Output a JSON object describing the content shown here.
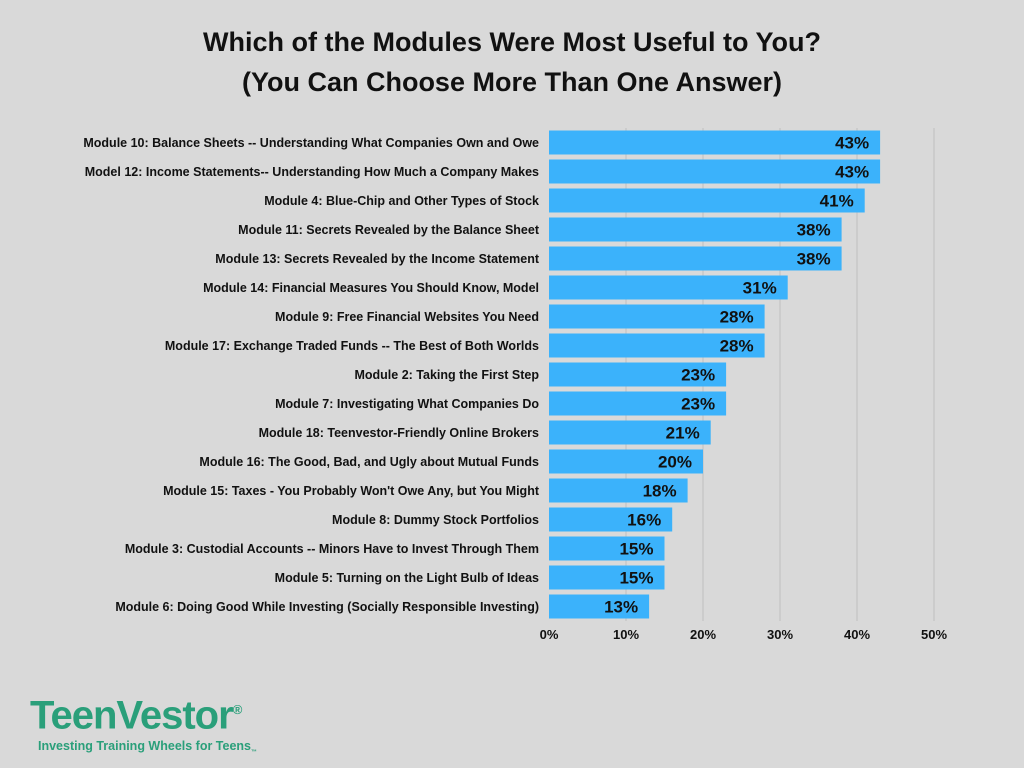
{
  "chart_data": {
    "type": "bar",
    "orientation": "horizontal",
    "title_lines": [
      "Which of the Modules Were Most Useful to You?",
      "(You Can Choose More Than One Answer)"
    ],
    "categories": [
      "Module 10: Balance Sheets -- Understanding What Companies Own and Owe",
      "Model 12: Income Statements-- Understanding How Much a Company Makes",
      "Module 4: Blue-Chip and Other Types of Stock",
      "Module 11: Secrets Revealed by the Balance Sheet",
      "Module 13: Secrets Revealed by the Income Statement",
      "Module 14: Financial Measures You Should Know, Model",
      "Module 9: Free Financial Websites You Need",
      "Module 17: Exchange Traded Funds -- The Best of Both Worlds",
      "Module 2: Taking the First Step",
      "Module 7: Investigating What Companies Do",
      "Module 18: Teenvestor-Friendly Online Brokers",
      "Module 16: The Good, Bad, and Ugly about Mutual Funds",
      "Module 15: Taxes - You Probably Won't Owe Any, but You Might",
      "Module 8: Dummy Stock Portfolios",
      "Module 3: Custodial Accounts -- Minors Have to Invest Through Them",
      "Module 5: Turning on the Light Bulb of Ideas",
      "Module 6: Doing Good While Investing (Socially Responsible Investing)"
    ],
    "values": [
      43,
      43,
      41,
      38,
      38,
      31,
      28,
      28,
      23,
      23,
      21,
      20,
      18,
      16,
      15,
      15,
      13
    ],
    "value_labels": [
      "43%",
      "43%",
      "41%",
      "38%",
      "38%",
      "31%",
      "28%",
      "28%",
      "23%",
      "23%",
      "21%",
      "20%",
      "18%",
      "16%",
      "15%",
      "15%",
      "13%"
    ],
    "x_ticks": [
      0,
      10,
      20,
      30,
      40,
      50
    ],
    "x_tick_labels": [
      "0%",
      "10%",
      "20%",
      "30%",
      "40%",
      "50%"
    ],
    "xlim": [
      0,
      50
    ],
    "grid": "vertical",
    "bar_color": "#3bb2fb",
    "grid_color": "#bfbfbf",
    "background": "#d9d9d9"
  },
  "logo": {
    "wordmark": "TeenVestor",
    "registered": "®",
    "tagline": "Investing Training Wheels for Teens",
    "tagline_mark": "™",
    "color": "#2a9f7a"
  }
}
